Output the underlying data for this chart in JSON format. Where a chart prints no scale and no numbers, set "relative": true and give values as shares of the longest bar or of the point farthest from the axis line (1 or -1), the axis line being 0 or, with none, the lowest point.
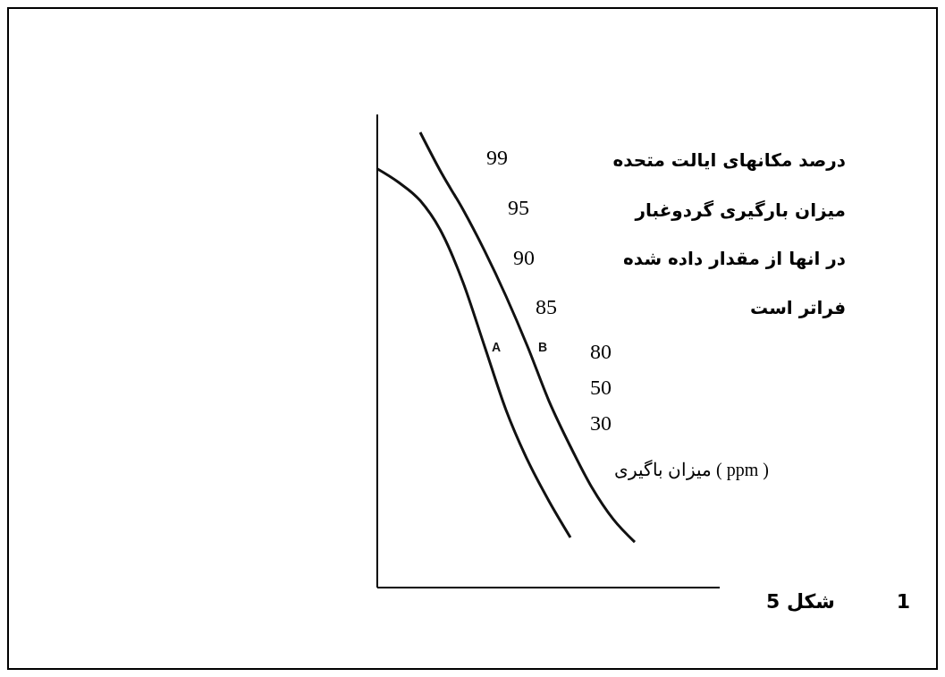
{
  "chart_data": {
    "type": "line",
    "relative": true,
    "categories": [
      null,
      null,
      null,
      null,
      null,
      null,
      null,
      null,
      null,
      null,
      null,
      null,
      null
    ],
    "series": [
      {
        "name": "A",
        "color": "#111111",
        "values": [
          0.92,
          0.89,
          0.85,
          0.78,
          0.67,
          0.53,
          0.39,
          0.28,
          0.19,
          0.11,
          null,
          null,
          null
        ]
      },
      {
        "name": "B",
        "color": "#111111",
        "values": [
          null,
          null,
          1,
          0.91,
          0.83,
          0.74,
          0.64,
          0.53,
          0.41,
          0.31,
          0.22,
          0.15,
          0.1
        ]
      }
    ],
    "marker": "none",
    "line_style": "solid",
    "annotations": [
      "99",
      "95",
      "90",
      "85",
      "80",
      "50",
      "30",
      "درصد مکانهای ایالت متحده",
      "میزان بارگیری گردوغبار",
      "در انها از مقدار داده شده",
      "فراتر است",
      "میزان باگیری ( ppm )",
      "شکل 5",
      "1"
    ]
  }
}
